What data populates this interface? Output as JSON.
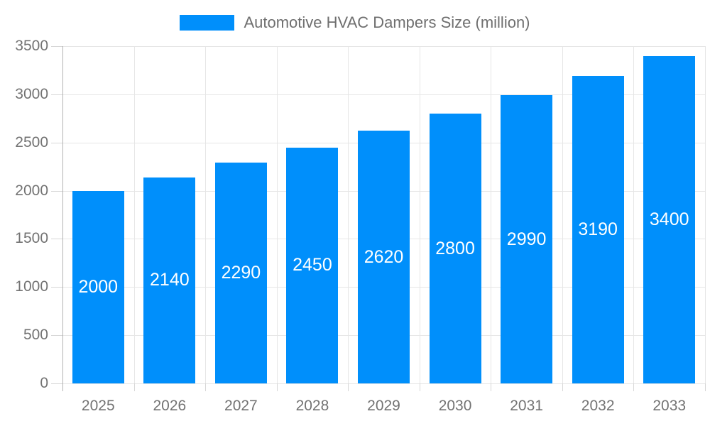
{
  "chart_data": {
    "type": "bar",
    "title": "Automotive HVAC Dampers Size (million)",
    "series_name": "Automotive HVAC Dampers Size (million)",
    "categories": [
      "2025",
      "2026",
      "2027",
      "2028",
      "2029",
      "2030",
      "2031",
      "2032",
      "2033"
    ],
    "values": [
      2000,
      2140,
      2290,
      2450,
      2620,
      2800,
      2990,
      3190,
      3400
    ],
    "yticks": [
      0,
      500,
      1000,
      1500,
      2000,
      2500,
      3000,
      3500
    ],
    "ylim": [
      0,
      3500
    ],
    "ytick_step": 500,
    "xlabel": "",
    "ylabel": "",
    "grid": true,
    "legend_position": "top",
    "bar_value_labels_inside": true
  },
  "colors": {
    "bar": "#008FFB",
    "bar_label": "#FFFFFF",
    "axis_label": "#737373",
    "legend_text": "#6F6F6F",
    "grid_line": "#E6E6E6",
    "axis_line": "#B3B3B3",
    "tick_mark": "#D7D7D7",
    "background": "#FFFFFF"
  }
}
